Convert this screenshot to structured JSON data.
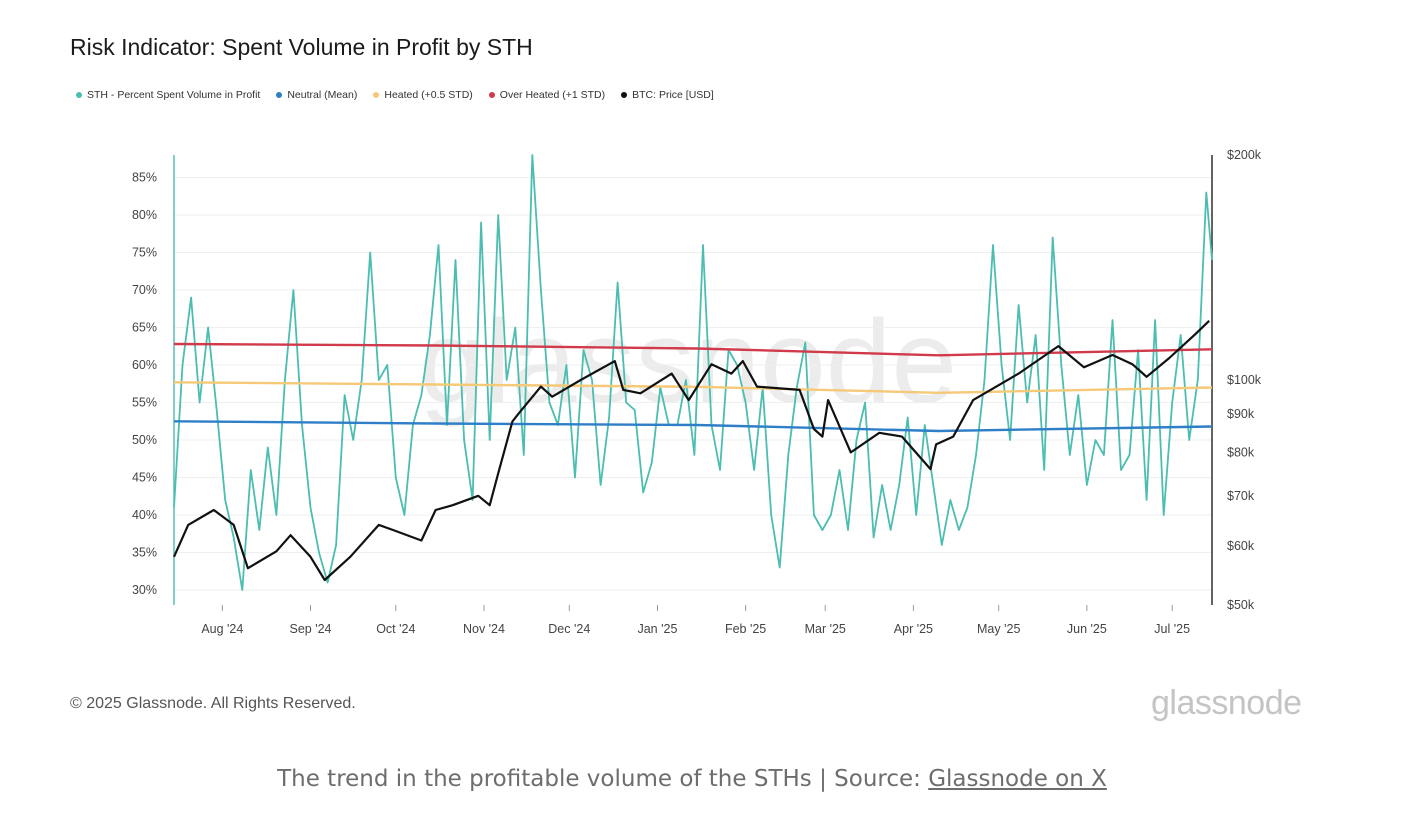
{
  "chart_data": {
    "type": "line",
    "title": "Risk Indicator: Spent Volume in Profit by STH",
    "legend_placement": "top-left",
    "grid": true,
    "watermark": "glassnode",
    "x_range": [
      "2024-07-15",
      "2025-07-15"
    ],
    "x_tick_labels": [
      "Aug '24",
      "Sep '24",
      "Oct '24",
      "Nov '24",
      "Dec '24",
      "Jan '25",
      "Feb '25",
      "Mar '25",
      "Apr '25",
      "May '25",
      "Jun '25",
      "Jul '25"
    ],
    "y_left": {
      "ylim": [
        28,
        88
      ],
      "tick_labels": [
        "30%",
        "35%",
        "40%",
        "45%",
        "50%",
        "55%",
        "60%",
        "65%",
        "70%",
        "75%",
        "80%",
        "85%"
      ]
    },
    "y_right": {
      "scale": "log",
      "ylim": [
        50000,
        200000
      ],
      "tick_labels": [
        "$50k",
        "$60k",
        "$70k",
        "$80k",
        "$90k",
        "$100k",
        "$200k"
      ]
    },
    "series": [
      {
        "name": "STH - Percent Spent Volume in Profit",
        "color": "#4bbdb1",
        "axis": "left",
        "x": [
          "2024-07-15",
          "2024-07-18",
          "2024-07-21",
          "2024-07-24",
          "2024-07-27",
          "2024-07-30",
          "2024-08-02",
          "2024-08-05",
          "2024-08-08",
          "2024-08-11",
          "2024-08-14",
          "2024-08-17",
          "2024-08-20",
          "2024-08-23",
          "2024-08-26",
          "2024-08-29",
          "2024-09-01",
          "2024-09-04",
          "2024-09-07",
          "2024-09-10",
          "2024-09-13",
          "2024-09-16",
          "2024-09-19",
          "2024-09-22",
          "2024-09-25",
          "2024-09-28",
          "2024-10-01",
          "2024-10-04",
          "2024-10-07",
          "2024-10-10",
          "2024-10-13",
          "2024-10-16",
          "2024-10-19",
          "2024-10-22",
          "2024-10-25",
          "2024-10-28",
          "2024-10-31",
          "2024-11-03",
          "2024-11-06",
          "2024-11-09",
          "2024-11-12",
          "2024-11-15",
          "2024-11-18",
          "2024-11-21",
          "2024-11-24",
          "2024-11-27",
          "2024-11-30",
          "2024-12-03",
          "2024-12-06",
          "2024-12-09",
          "2024-12-12",
          "2024-12-15",
          "2024-12-18",
          "2024-12-21",
          "2024-12-24",
          "2024-12-27",
          "2024-12-30",
          "2025-01-02",
          "2025-01-05",
          "2025-01-08",
          "2025-01-11",
          "2025-01-14",
          "2025-01-17",
          "2025-01-20",
          "2025-01-23",
          "2025-01-26",
          "2025-01-29",
          "2025-02-01",
          "2025-02-04",
          "2025-02-07",
          "2025-02-10",
          "2025-02-13",
          "2025-02-16",
          "2025-02-19",
          "2025-02-22",
          "2025-02-25",
          "2025-02-28",
          "2025-03-03",
          "2025-03-06",
          "2025-03-09",
          "2025-03-12",
          "2025-03-15",
          "2025-03-18",
          "2025-03-21",
          "2025-03-24",
          "2025-03-27",
          "2025-03-30",
          "2025-04-02",
          "2025-04-05",
          "2025-04-08",
          "2025-04-11",
          "2025-04-14",
          "2025-04-17",
          "2025-04-20",
          "2025-04-23",
          "2025-04-26",
          "2025-04-29",
          "2025-05-02",
          "2025-05-05",
          "2025-05-08",
          "2025-05-11",
          "2025-05-14",
          "2025-05-17",
          "2025-05-20",
          "2025-05-23",
          "2025-05-26",
          "2025-05-29",
          "2025-06-01",
          "2025-06-04",
          "2025-06-07",
          "2025-06-10",
          "2025-06-13",
          "2025-06-16",
          "2025-06-19",
          "2025-06-22",
          "2025-06-25",
          "2025-06-28",
          "2025-07-01",
          "2025-07-04",
          "2025-07-07",
          "2025-07-10",
          "2025-07-13",
          "2025-07-15"
        ],
        "values": [
          41,
          60,
          69,
          55,
          65,
          54,
          42,
          37,
          30,
          46,
          38,
          49,
          40,
          58,
          70,
          52,
          41,
          35,
          31,
          36,
          56,
          50,
          58,
          75,
          58,
          60,
          45,
          40,
          52,
          56,
          64,
          76,
          52,
          74,
          50,
          42,
          79,
          50,
          80,
          58,
          65,
          48,
          88,
          70,
          55,
          52,
          60,
          45,
          62,
          58,
          44,
          53,
          71,
          55,
          54,
          43,
          47,
          57,
          52,
          52,
          58,
          48,
          76,
          52,
          46,
          62,
          60,
          55,
          46,
          57,
          40,
          33,
          48,
          57,
          63,
          40,
          38,
          40,
          46,
          38,
          50,
          55,
          37,
          44,
          38,
          44,
          53,
          40,
          52,
          44,
          36,
          42,
          38,
          41,
          48,
          58,
          76,
          60,
          50,
          68,
          55,
          64,
          46,
          77,
          60,
          48,
          56,
          44,
          50,
          48,
          66,
          46,
          48,
          62,
          42,
          66,
          40,
          55,
          64,
          50,
          58,
          83,
          74
        ],
        "dot": true
      },
      {
        "name": "Neutral (Mean)",
        "color": "#2e7fc8",
        "axis": "left",
        "x": [
          "2024-07-15",
          "2024-10-15",
          "2025-01-15",
          "2025-04-10",
          "2025-07-15"
        ],
        "values": [
          52.5,
          52.2,
          52.0,
          51.2,
          51.8
        ],
        "dot": true
      },
      {
        "name": "Heated (+0.5 STD)",
        "color": "#f5c977",
        "axis": "left",
        "x": [
          "2024-07-15",
          "2024-10-15",
          "2025-01-15",
          "2025-04-10",
          "2025-07-15"
        ],
        "values": [
          57.7,
          57.4,
          57.1,
          56.3,
          57.0
        ],
        "dot": true
      },
      {
        "name": "Over Heated (+1 STD)",
        "color": "#d03a4a",
        "axis": "left",
        "x": [
          "2024-07-15",
          "2024-10-15",
          "2025-01-15",
          "2025-04-10",
          "2025-07-15"
        ],
        "values": [
          62.8,
          62.6,
          62.2,
          61.3,
          62.1
        ],
        "dot": true
      },
      {
        "name": "BTC: Price [USD]",
        "color": "#111111",
        "axis": "right",
        "x": [
          "2024-07-15",
          "2024-07-20",
          "2024-07-29",
          "2024-08-05",
          "2024-08-10",
          "2024-08-20",
          "2024-08-25",
          "2024-09-01",
          "2024-09-06",
          "2024-09-15",
          "2024-09-25",
          "2024-09-30",
          "2024-10-10",
          "2024-10-15",
          "2024-10-21",
          "2024-10-30",
          "2024-11-03",
          "2024-11-06",
          "2024-11-11",
          "2024-11-13",
          "2024-11-21",
          "2024-11-25",
          "2024-12-05",
          "2024-12-17",
          "2024-12-20",
          "2024-12-26",
          "2025-01-06",
          "2025-01-12",
          "2025-01-20",
          "2025-01-27",
          "2025-01-31",
          "2025-02-05",
          "2025-02-20",
          "2025-02-25",
          "2025-02-28",
          "2025-03-02",
          "2025-03-10",
          "2025-03-20",
          "2025-03-28",
          "2025-04-07",
          "2025-04-09",
          "2025-04-15",
          "2025-04-22",
          "2025-05-08",
          "2025-05-22",
          "2025-05-31",
          "2025-06-10",
          "2025-06-17",
          "2025-06-22",
          "2025-06-30",
          "2025-07-09",
          "2025-07-14"
        ],
        "values": [
          58000,
          64000,
          67000,
          64000,
          56000,
          59000,
          62000,
          58000,
          54000,
          58000,
          64000,
          63000,
          61000,
          67000,
          68000,
          70000,
          68000,
          75000,
          88000,
          90000,
          98000,
          95000,
          100000,
          106000,
          97000,
          96000,
          102000,
          94000,
          105000,
          102000,
          106000,
          98000,
          97000,
          86000,
          84000,
          94000,
          80000,
          85000,
          84000,
          76000,
          82000,
          84000,
          94000,
          102000,
          111000,
          104000,
          108000,
          105000,
          101000,
          107000,
          115000,
          120000
        ],
        "dot": true
      }
    ]
  },
  "footer": {
    "copyright": "© 2025 Glassnode. All Rights Reserved.",
    "brand": "glassnode"
  },
  "caption": {
    "text": "The trend in the profitable volume of the STHs | Source: ",
    "link_text": "Glassnode on X"
  }
}
